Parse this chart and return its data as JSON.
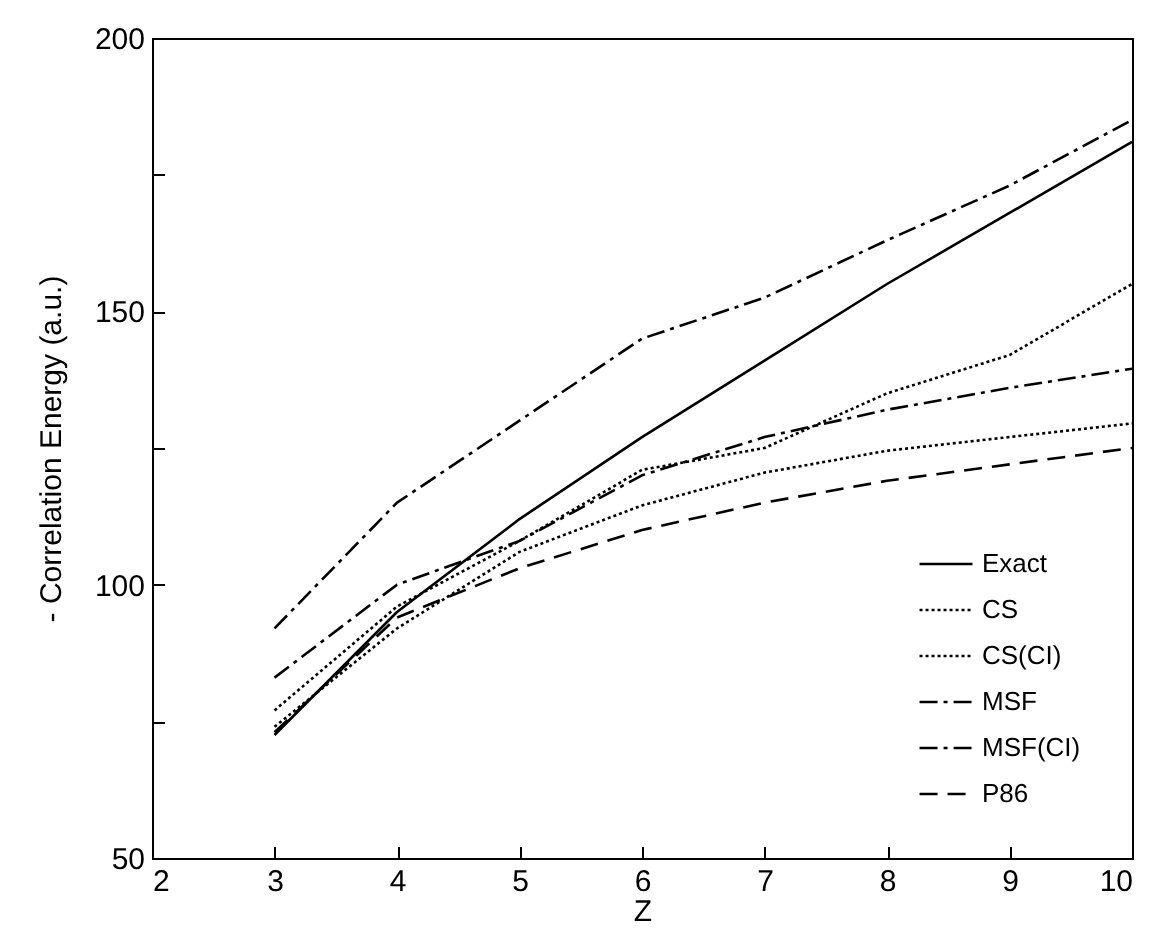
{
  "chart_data": {
    "type": "line",
    "xlabel": "Z",
    "ylabel": "- Correlation Energy  (a.u.)",
    "x": [
      3,
      4,
      5,
      6,
      7,
      8,
      9,
      10
    ],
    "series": [
      {
        "name": "Exact",
        "color": "#000000",
        "line_style": "solid",
        "values": [
          72.5,
          95,
          112,
          127,
          141,
          155,
          168,
          181
        ]
      },
      {
        "name": "CS",
        "color": "#000000",
        "line_style": "dotted",
        "values": [
          74,
          92,
          106,
          114.5,
          120.5,
          124.5,
          127,
          129.5
        ]
      },
      {
        "name": "CS(CI)",
        "color": "#000000",
        "line_style": "dotted",
        "values": [
          77,
          96,
          108,
          121,
          125,
          135,
          142,
          155
        ]
      },
      {
        "name": "MSF",
        "color": "#000000",
        "line_style": "dashdot",
        "values": [
          83,
          100,
          108,
          120,
          127,
          132,
          136,
          139.5
        ]
      },
      {
        "name": "MSF(CI)",
        "color": "#000000",
        "line_style": "dashdot",
        "values": [
          92,
          115,
          130,
          145,
          152.5,
          163,
          173,
          185
        ]
      },
      {
        "name": "P86",
        "color": "#000000",
        "line_style": "dashed",
        "values": [
          73,
          94,
          103,
          110,
          115,
          119,
          122,
          125
        ]
      }
    ],
    "xlim": [
      2,
      10
    ],
    "xticks": [
      2,
      3,
      4,
      5,
      6,
      7,
      8,
      9,
      10
    ],
    "ylim": [
      50,
      200
    ],
    "yticks": [
      50,
      {
        "value": 75,
        "label": null
      },
      100,
      {
        "value": 125,
        "label": null
      },
      150,
      {
        "value": 175,
        "label": null
      },
      200
    ],
    "grid": false,
    "legend": "bottom right",
    "marker": "none"
  }
}
